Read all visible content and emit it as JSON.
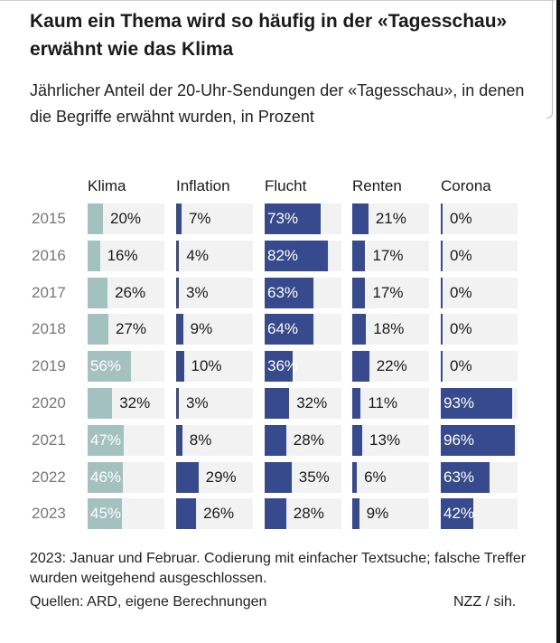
{
  "title": "Kaum ein Thema wird so häufig in der «Tagesschau» erwähnt wie das Klima",
  "subtitle": "Jährlicher Anteil der 20-Uhr-Sendungen der «Tagesschau», in denen die Begriffe erwähnt wurden, in Prozent",
  "footer": "2023: Januar und Februar. Codierung mit einfacher Textsuche; falsche Treffer wurden weitgehend ausgeschlossen.",
  "source": "Quellen: ARD, eigene Berechnungen",
  "credit": "NZZ / sih.",
  "chart_data": {
    "type": "bar",
    "orientation": "horizontal",
    "layout": "small-multiples",
    "categories": [
      "2015",
      "2016",
      "2017",
      "2018",
      "2019",
      "2020",
      "2021",
      "2022",
      "2023"
    ],
    "xlim": [
      0,
      100
    ],
    "unit": "%",
    "series": [
      {
        "name": "Klima",
        "color": "#a3c1bf",
        "values": [
          20,
          16,
          26,
          27,
          56,
          32,
          47,
          46,
          45
        ]
      },
      {
        "name": "Inflation",
        "color": "#364a8d",
        "values": [
          7,
          4,
          3,
          9,
          10,
          3,
          8,
          29,
          26
        ]
      },
      {
        "name": "Flucht",
        "color": "#364a8d",
        "values": [
          73,
          82,
          63,
          64,
          36,
          32,
          28,
          35,
          28
        ]
      },
      {
        "name": "Renten",
        "color": "#364a8d",
        "values": [
          21,
          17,
          17,
          18,
          22,
          11,
          13,
          6,
          9
        ]
      },
      {
        "name": "Corona",
        "color": "#364a8d",
        "values": [
          0,
          0,
          0,
          0,
          0,
          93,
          96,
          63,
          42
        ]
      }
    ],
    "track_color": "#f2f2f2"
  }
}
